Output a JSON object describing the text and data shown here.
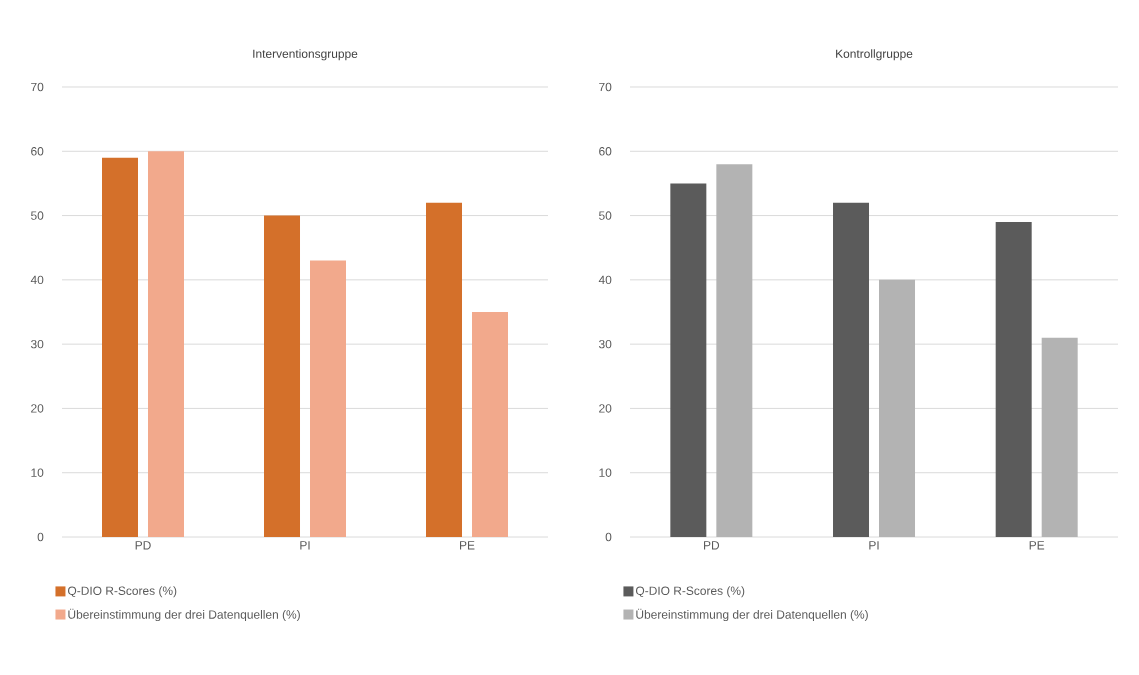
{
  "chart_data": [
    {
      "type": "bar",
      "title": "Interventionsgruppe",
      "categories": [
        "PD",
        "PI",
        "PE"
      ],
      "series": [
        {
          "name": "Q-DIO R-Scores (%)",
          "color": "#d4702a",
          "values": [
            59,
            50,
            52
          ]
        },
        {
          "name": "Übereinstimmung der drei Datenquellen (%)",
          "color": "#f2a98c",
          "values": [
            60,
            43,
            35
          ]
        }
      ],
      "ylim": [
        0,
        70
      ],
      "yticks": [
        0,
        10,
        20,
        30,
        40,
        50,
        60,
        70
      ],
      "grid": "y",
      "legend": "bottom"
    },
    {
      "type": "bar",
      "title": "Kontrollgruppe",
      "categories": [
        "PD",
        "PI",
        "PE"
      ],
      "series": [
        {
          "name": "Q-DIO R-Scores (%)",
          "color": "#5b5b5b",
          "values": [
            55,
            52,
            49
          ]
        },
        {
          "name": "Übereinstimmung der drei Datenquellen (%)",
          "color": "#b3b3b3",
          "values": [
            58,
            40,
            31
          ]
        }
      ],
      "ylim": [
        0,
        70
      ],
      "yticks": [
        0,
        10,
        20,
        30,
        40,
        50,
        60,
        70
      ],
      "grid": "y",
      "legend": "bottom"
    }
  ]
}
